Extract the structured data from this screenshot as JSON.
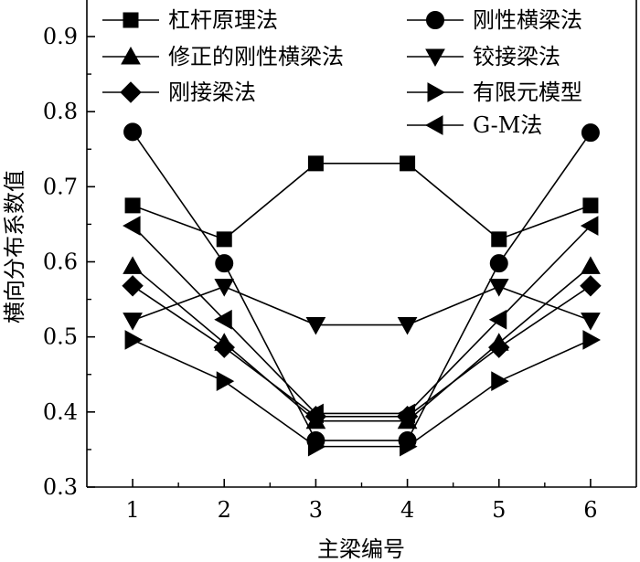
{
  "chart_data": {
    "type": "line",
    "title": "",
    "xlabel": "主梁编号",
    "ylabel": "横向分布系数值",
    "x": [
      1,
      2,
      3,
      4,
      5,
      6
    ],
    "x_ticks": [
      "1",
      "2",
      "3",
      "4",
      "5",
      "6"
    ],
    "xlim": [
      0.5,
      6.5
    ],
    "ylim": [
      0.3,
      0.95
    ],
    "y_ticks": [
      "0.3",
      "0.4",
      "0.5",
      "0.6",
      "0.7",
      "0.8",
      "0.9"
    ],
    "grid": false,
    "legend_position": "top, two columns",
    "series": [
      {
        "name": "杠杆原理法",
        "marker": "square",
        "values": [
          0.675,
          0.63,
          0.731,
          0.731,
          0.63,
          0.675
        ]
      },
      {
        "name": "刚性横梁法",
        "marker": "circle",
        "values": [
          0.773,
          0.598,
          0.362,
          0.362,
          0.598,
          0.772
        ]
      },
      {
        "name": "修正的刚性横梁法",
        "marker": "triangle-up",
        "values": [
          0.594,
          0.492,
          0.388,
          0.388,
          0.492,
          0.594
        ]
      },
      {
        "name": "铰接梁法",
        "marker": "triangle-down",
        "values": [
          0.522,
          0.567,
          0.516,
          0.516,
          0.567,
          0.522
        ]
      },
      {
        "name": "刚接梁法",
        "marker": "diamond",
        "values": [
          0.568,
          0.486,
          0.394,
          0.394,
          0.486,
          0.568
        ]
      },
      {
        "name": "有限元模型",
        "marker": "triangle-right",
        "values": [
          0.496,
          0.441,
          0.354,
          0.354,
          0.441,
          0.496
        ]
      },
      {
        "name": "G-M法",
        "marker": "triangle-left",
        "values": [
          0.648,
          0.523,
          0.398,
          0.398,
          0.523,
          0.648
        ]
      }
    ]
  }
}
